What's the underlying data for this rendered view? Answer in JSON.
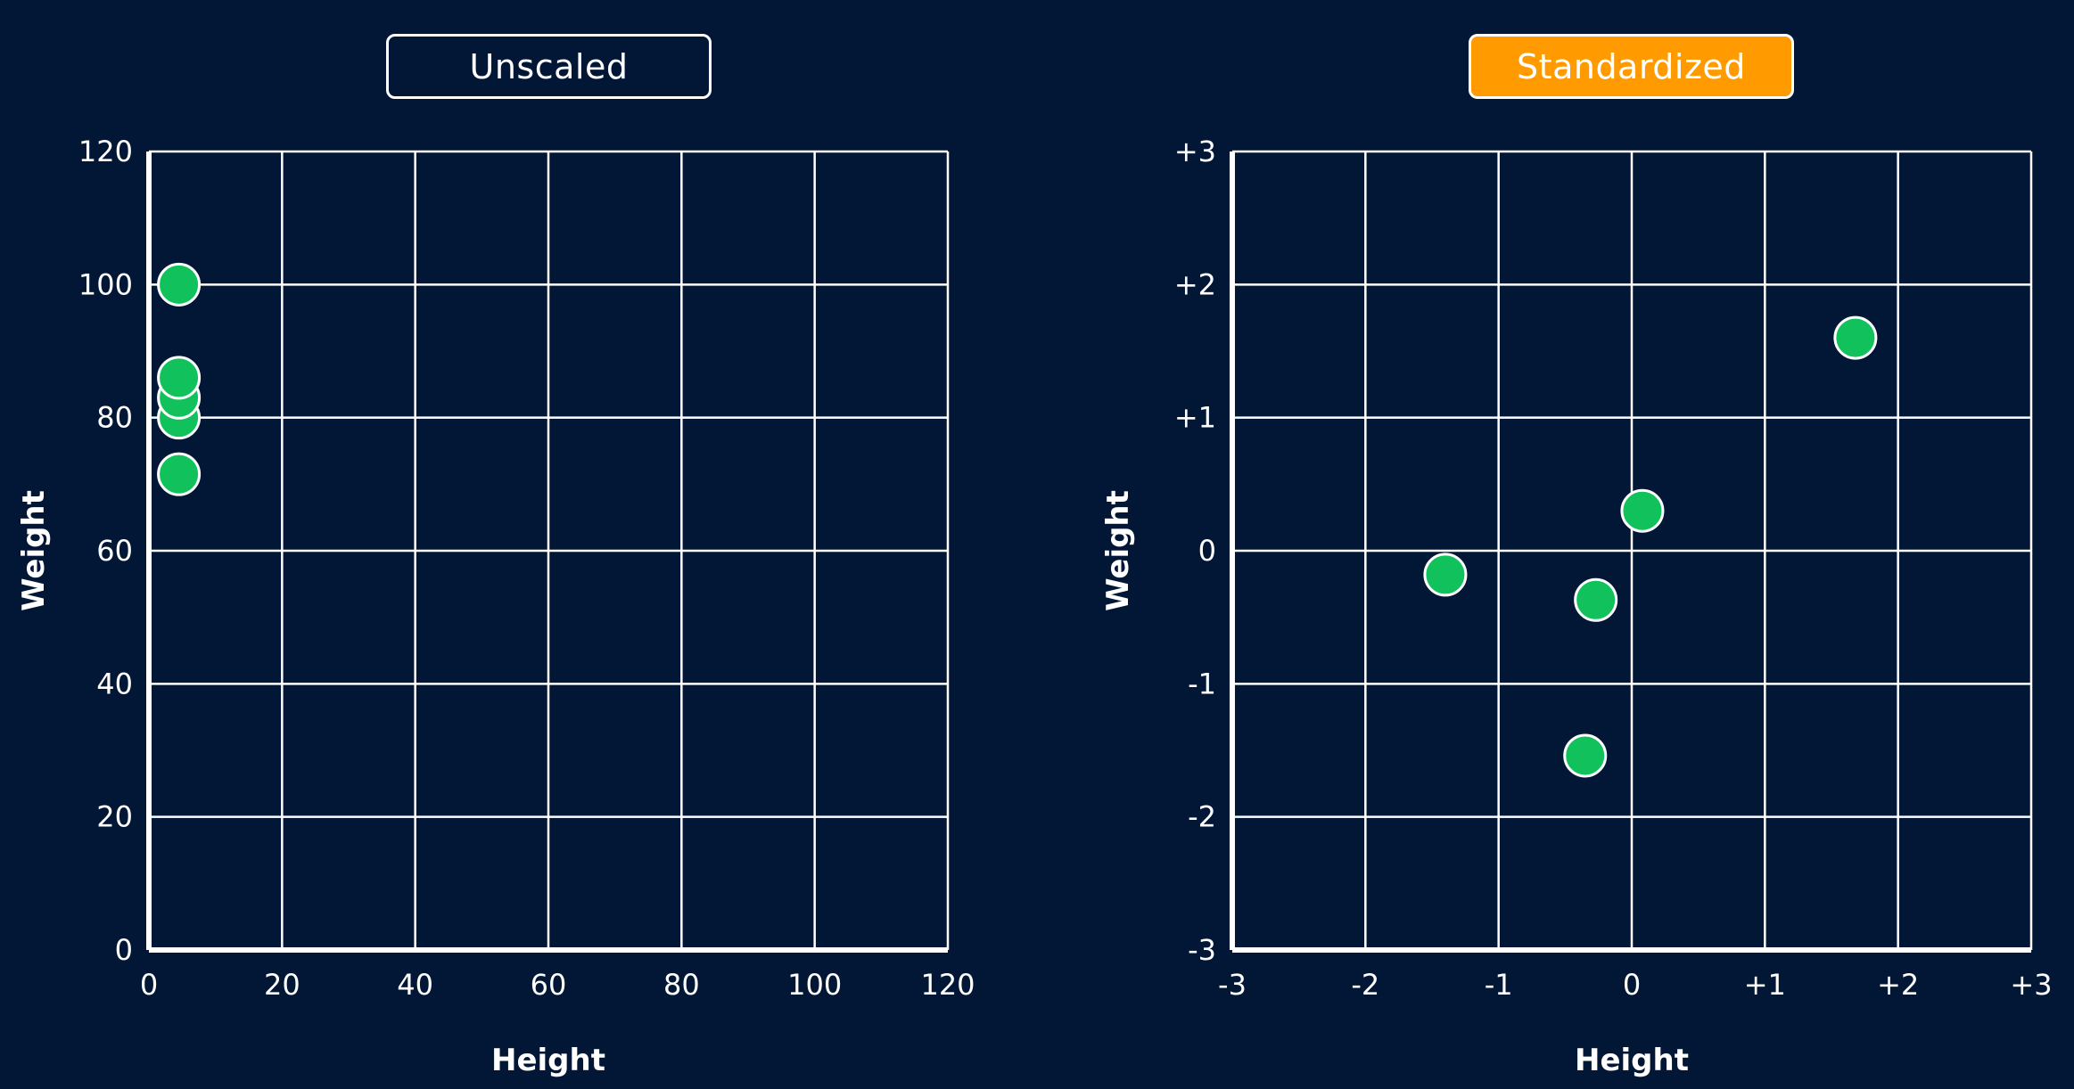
{
  "buttons": {
    "unscaled_label": "Unscaled",
    "standardized_label": "Standardized"
  },
  "colors": {
    "background": "#021736",
    "grid": "#ffffff",
    "point_fill": "#11c15b",
    "point_stroke": "#ffffff",
    "active_button": "#ff9a00"
  },
  "chart_data": [
    {
      "type": "scatter",
      "title": "Unscaled",
      "xlabel": "Height",
      "ylabel": "Weight",
      "xlim": [
        0,
        120
      ],
      "ylim": [
        0,
        120
      ],
      "grid": true,
      "xticks": [
        0,
        20,
        40,
        60,
        80,
        100,
        120
      ],
      "yticks": [
        0,
        20,
        40,
        60,
        80,
        100,
        120
      ],
      "xtick_labels": [
        "0",
        "20",
        "40",
        "60",
        "80",
        "100",
        "120"
      ],
      "ytick_labels": [
        "0",
        "20",
        "40",
        "60",
        "80",
        "100",
        "120"
      ],
      "series": [
        {
          "x": [
            4.5,
            4.5,
            4.5,
            4.5,
            4.5
          ],
          "y": [
            100,
            80,
            83,
            86,
            71.5
          ]
        }
      ]
    },
    {
      "type": "scatter",
      "title": "Standardized",
      "xlabel": "Height",
      "ylabel": "Weight",
      "xlim": [
        -3,
        3
      ],
      "ylim": [
        -3,
        3
      ],
      "grid": true,
      "xticks": [
        -3,
        -2,
        -1,
        0,
        1,
        2,
        3
      ],
      "yticks": [
        -3,
        -2,
        -1,
        0,
        1,
        2,
        3
      ],
      "xtick_labels": [
        "-3",
        "-2",
        "-1",
        "0",
        "+1",
        "+2",
        "+3"
      ],
      "ytick_labels": [
        "-3",
        "-2",
        "-1",
        "0",
        "+1",
        "+2",
        "+3"
      ],
      "series": [
        {
          "x": [
            1.68,
            0.08,
            -0.27,
            -1.4,
            -0.35
          ],
          "y": [
            1.6,
            0.3,
            -0.37,
            -0.18,
            -1.54
          ]
        }
      ]
    }
  ]
}
